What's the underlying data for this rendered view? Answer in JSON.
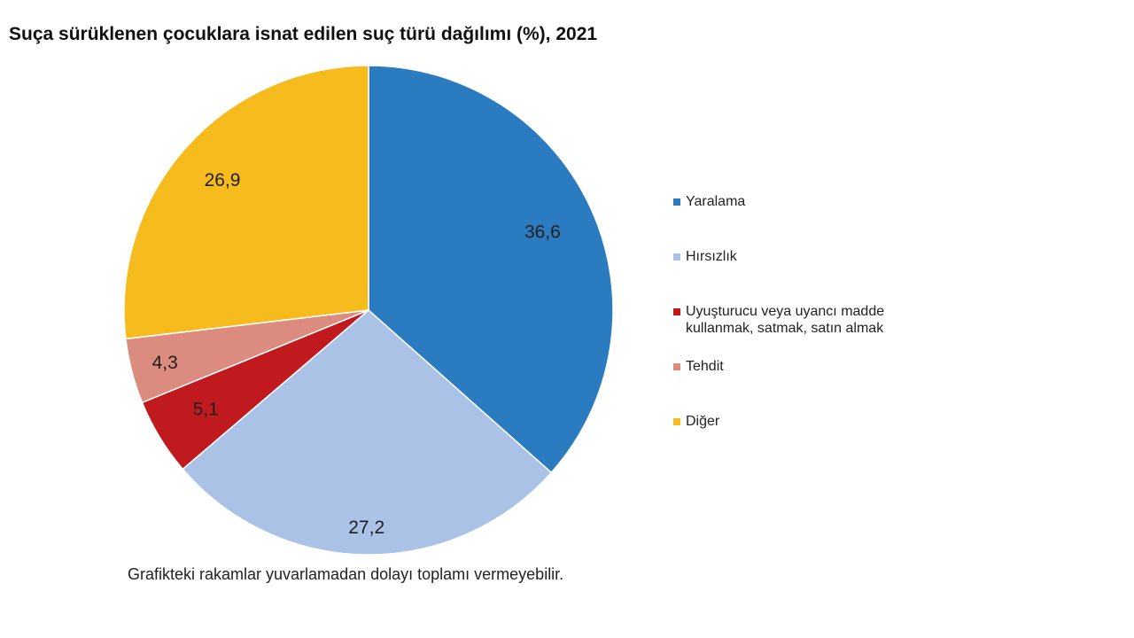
{
  "chart_data": {
    "type": "pie",
    "title": "Suça sürüklenen çocuklara isnat edilen suç türü dağılımı (%), 2021",
    "slices": [
      {
        "label": "Yaralama",
        "value": 36.6,
        "display": "36,6",
        "color": "#2B7BC1"
      },
      {
        "label": "Hırsızlık",
        "value": 27.2,
        "display": "27,2",
        "color": "#A9C2E6"
      },
      {
        "label": "Uyuşturucu veya uyancı madde\nkullanmak, satmak, satın almak",
        "value": 5.1,
        "display": "5,1",
        "color": "#C0191E"
      },
      {
        "label": "Tehdit",
        "value": 4.3,
        "display": "4,3",
        "color": "#DB8C7E"
      },
      {
        "label": "Diğer",
        "value": 26.9,
        "display": "26,9",
        "color": "#F6BC1E"
      }
    ],
    "start_angle_deg": 0,
    "direction": "clockwise",
    "legend_position": "right"
  },
  "footnote": "Grafikteki rakamlar yuvarlamadan dolayı toplamı vermeyebilir."
}
